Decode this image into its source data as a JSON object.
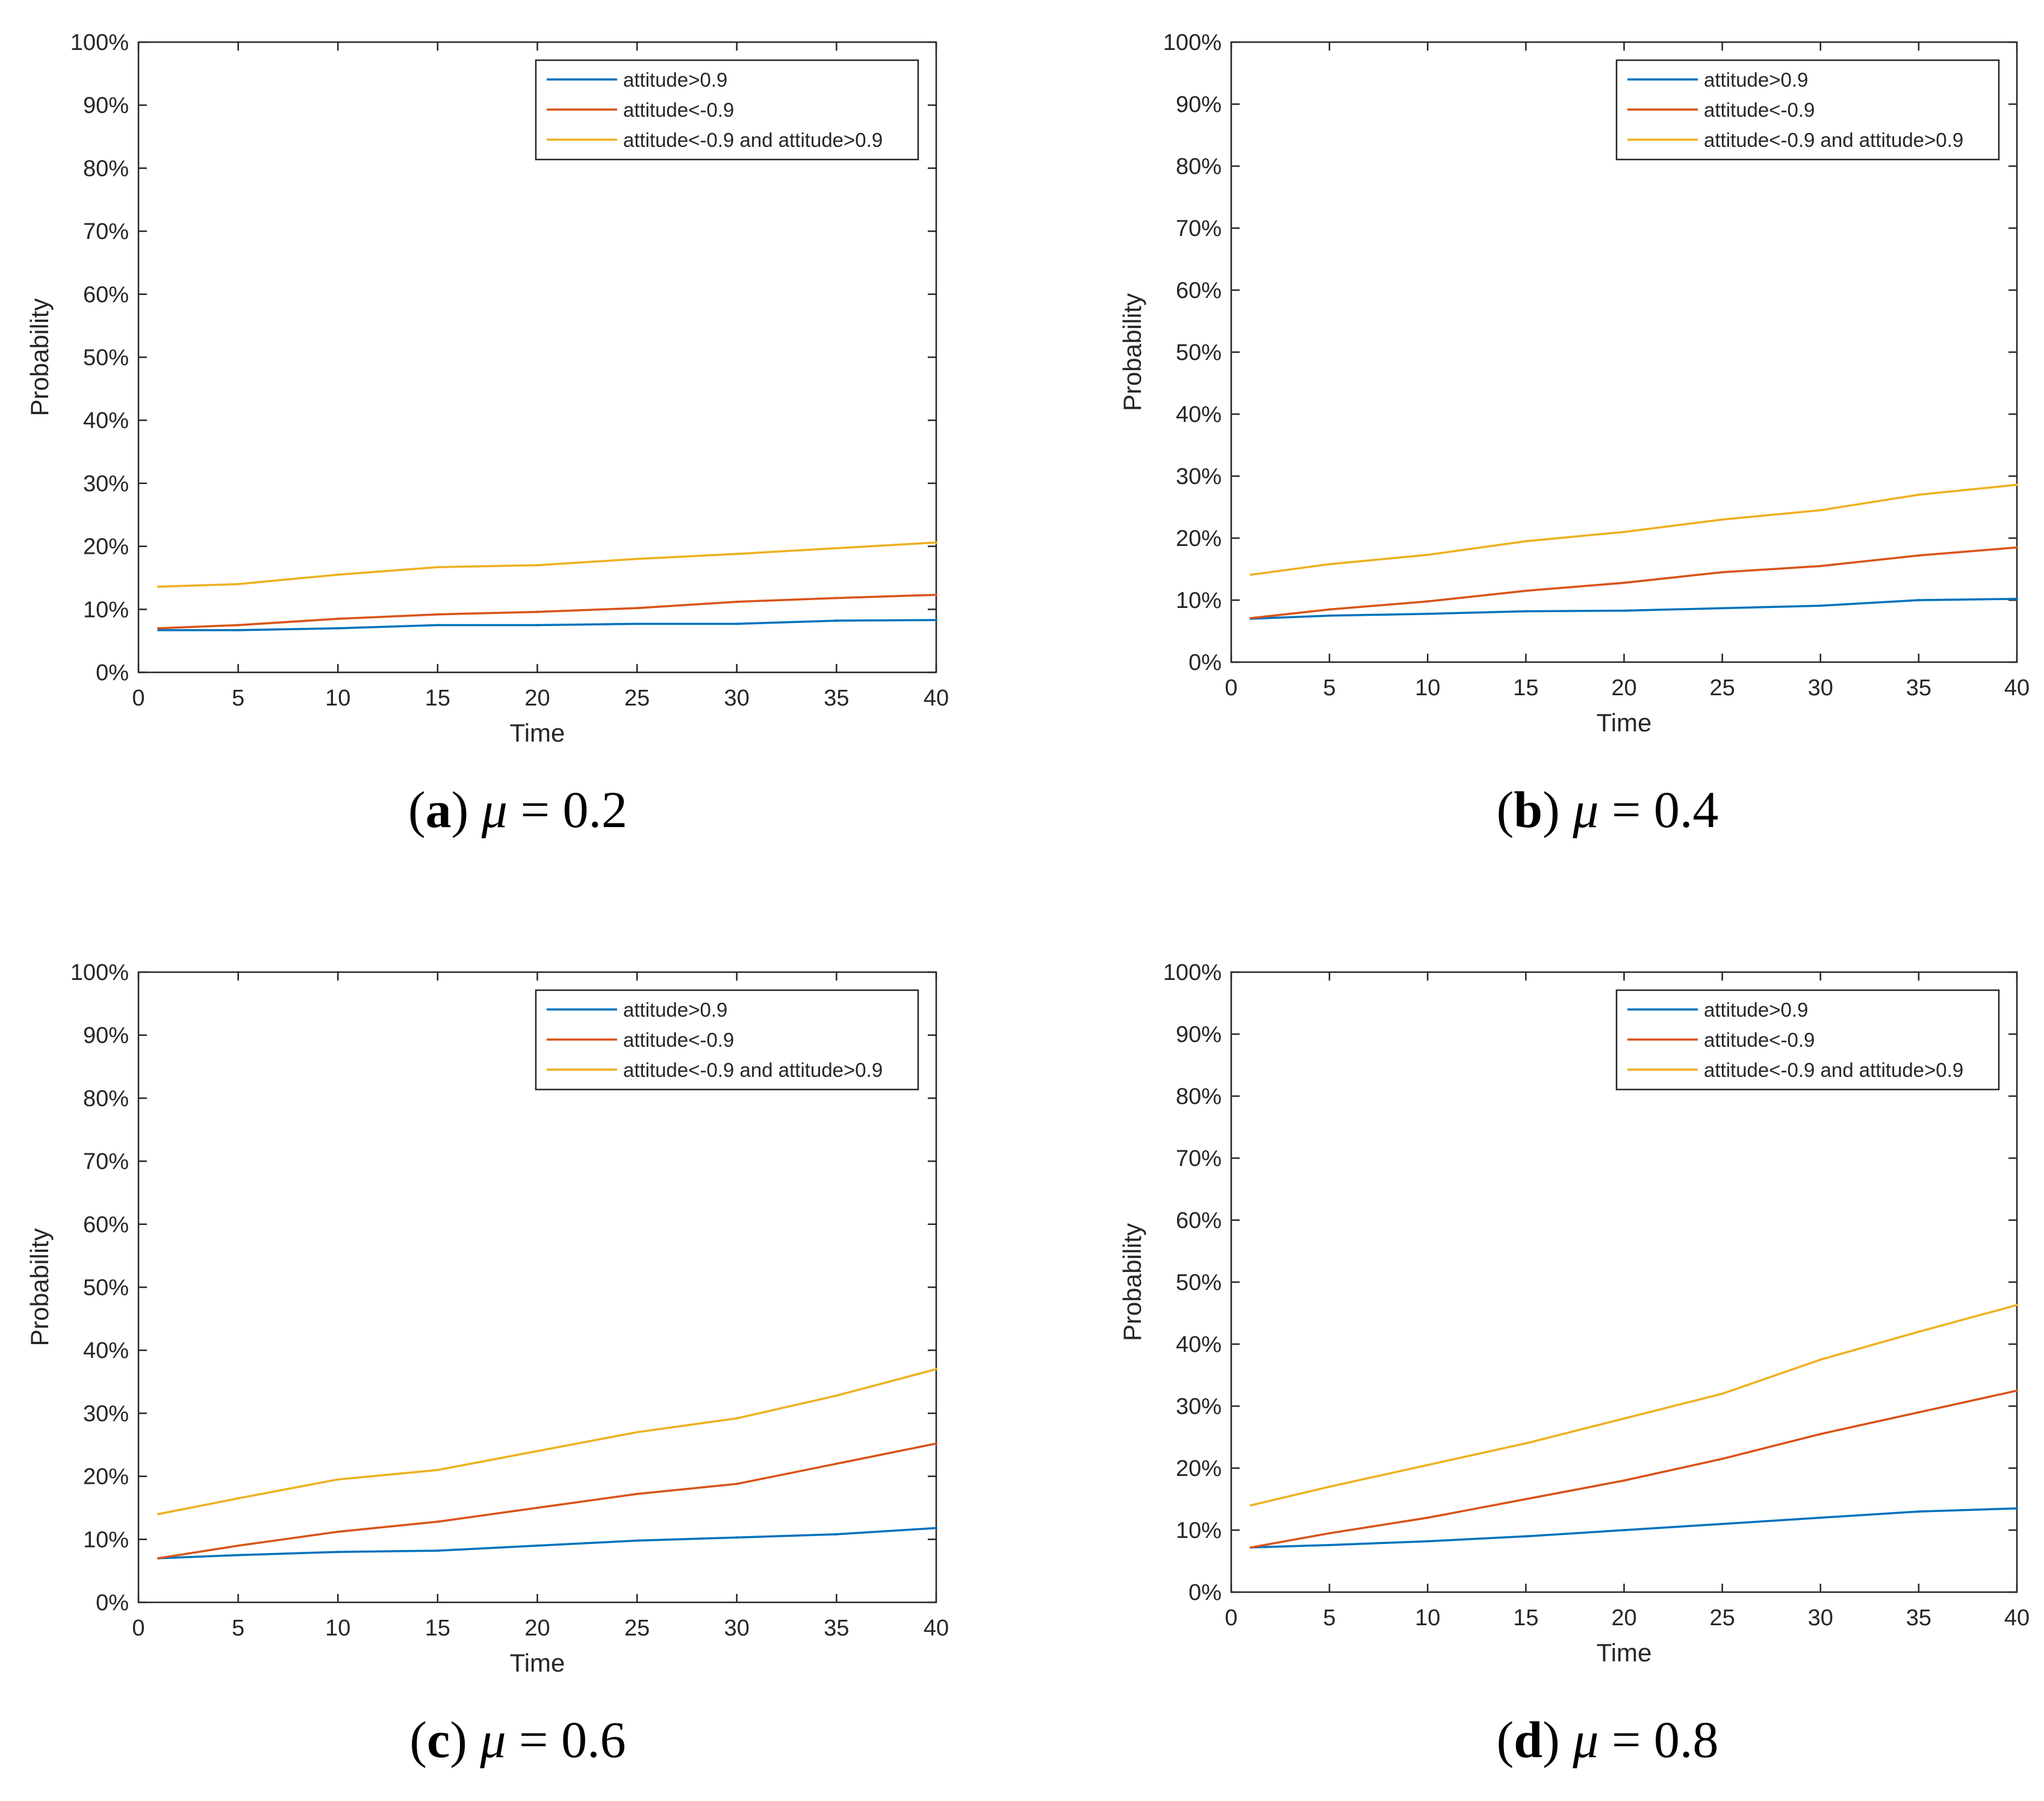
{
  "figure": {
    "panels_count": 4,
    "line_colors": {
      "blue": "#0072BD",
      "orange": "#D95319",
      "yellow": "#EDB120"
    }
  },
  "chart_data": [
    {
      "type": "line",
      "title": "",
      "caption": {
        "letter": "a",
        "symbol": "μ",
        "equals": "=",
        "value": "0.2"
      },
      "xlabel": "Time",
      "ylabel": "Probability",
      "xlim": [
        0,
        40
      ],
      "ylim": [
        0,
        100
      ],
      "xticks": [
        0,
        5,
        10,
        15,
        20,
        25,
        30,
        35,
        40
      ],
      "yticks": [
        0,
        10,
        20,
        30,
        40,
        50,
        60,
        70,
        80,
        90,
        100
      ],
      "ytick_labels": [
        "0%",
        "10%",
        "20%",
        "30%",
        "40%",
        "50%",
        "60%",
        "70%",
        "80%",
        "90%",
        "100%"
      ],
      "legend_position": "top-right",
      "x": [
        1,
        5,
        10,
        15,
        20,
        25,
        30,
        35,
        40
      ],
      "series": [
        {
          "name": "attitude>0.9",
          "color": "#0072BD",
          "values": [
            6.7,
            6.7,
            7.0,
            7.5,
            7.5,
            7.7,
            7.7,
            8.2,
            8.3
          ]
        },
        {
          "name": "attitude<-0.9",
          "color": "#D95319",
          "values": [
            7.0,
            7.5,
            8.5,
            9.2,
            9.6,
            10.2,
            11.2,
            11.8,
            12.3
          ]
        },
        {
          "name": "attitude<-0.9 and attitude>0.9",
          "color": "#EDB120",
          "values": [
            13.6,
            14.0,
            15.5,
            16.7,
            17.0,
            18.0,
            18.8,
            19.7,
            20.6
          ]
        }
      ]
    },
    {
      "type": "line",
      "title": "",
      "caption": {
        "letter": "b",
        "symbol": "μ",
        "equals": "=",
        "value": "0.4"
      },
      "xlabel": "Time",
      "ylabel": "Probability",
      "xlim": [
        0,
        40
      ],
      "ylim": [
        0,
        100
      ],
      "xticks": [
        0,
        5,
        10,
        15,
        20,
        25,
        30,
        35,
        40
      ],
      "yticks": [
        0,
        10,
        20,
        30,
        40,
        50,
        60,
        70,
        80,
        90,
        100
      ],
      "ytick_labels": [
        "0%",
        "10%",
        "20%",
        "30%",
        "40%",
        "50%",
        "60%",
        "70%",
        "80%",
        "90%",
        "100%"
      ],
      "legend_position": "top-right",
      "x": [
        1,
        5,
        10,
        15,
        20,
        25,
        30,
        35,
        40
      ],
      "series": [
        {
          "name": "attitude>0.9",
          "color": "#0072BD",
          "values": [
            7.0,
            7.5,
            7.8,
            8.2,
            8.3,
            8.7,
            9.1,
            10.0,
            10.2
          ]
        },
        {
          "name": "attitude<-0.9",
          "color": "#D95319",
          "values": [
            7.1,
            8.5,
            9.8,
            11.5,
            12.8,
            14.5,
            15.5,
            17.2,
            18.5
          ]
        },
        {
          "name": "attitude<-0.9 and attitude>0.9",
          "color": "#EDB120",
          "values": [
            14.1,
            15.8,
            17.3,
            19.5,
            21.0,
            23.0,
            24.5,
            27.0,
            28.6
          ]
        }
      ]
    },
    {
      "type": "line",
      "title": "",
      "caption": {
        "letter": "c",
        "symbol": "μ",
        "equals": "=",
        "value": "0.6"
      },
      "xlabel": "Time",
      "ylabel": "Probability",
      "xlim": [
        0,
        40
      ],
      "ylim": [
        0,
        100
      ],
      "xticks": [
        0,
        5,
        10,
        15,
        20,
        25,
        30,
        35,
        40
      ],
      "yticks": [
        0,
        10,
        20,
        30,
        40,
        50,
        60,
        70,
        80,
        90,
        100
      ],
      "ytick_labels": [
        "0%",
        "10%",
        "20%",
        "30%",
        "40%",
        "50%",
        "60%",
        "70%",
        "80%",
        "90%",
        "100%"
      ],
      "legend_position": "top-right",
      "x": [
        1,
        5,
        10,
        15,
        20,
        25,
        30,
        35,
        40
      ],
      "series": [
        {
          "name": "attitude>0.9",
          "color": "#0072BD",
          "values": [
            7.0,
            7.5,
            8.0,
            8.2,
            9.0,
            9.8,
            10.3,
            10.8,
            11.8
          ]
        },
        {
          "name": "attitude<-0.9",
          "color": "#D95319",
          "values": [
            7.0,
            9.0,
            11.2,
            12.8,
            15.0,
            17.2,
            18.8,
            22.0,
            25.2
          ]
        },
        {
          "name": "attitude<-0.9 and attitude>0.9",
          "color": "#EDB120",
          "values": [
            14.0,
            16.5,
            19.5,
            21.0,
            24.0,
            27.0,
            29.2,
            32.8,
            37.0
          ]
        }
      ]
    },
    {
      "type": "line",
      "title": "",
      "caption": {
        "letter": "d",
        "symbol": "μ",
        "equals": "=",
        "value": "0.8"
      },
      "xlabel": "Time",
      "ylabel": "Probability",
      "xlim": [
        0,
        40
      ],
      "ylim": [
        0,
        100
      ],
      "xticks": [
        0,
        5,
        10,
        15,
        20,
        25,
        30,
        35,
        40
      ],
      "yticks": [
        0,
        10,
        20,
        30,
        40,
        50,
        60,
        70,
        80,
        90,
        100
      ],
      "ytick_labels": [
        "0%",
        "10%",
        "20%",
        "30%",
        "40%",
        "50%",
        "60%",
        "70%",
        "80%",
        "90%",
        "100%"
      ],
      "legend_position": "top-right",
      "x": [
        1,
        5,
        10,
        15,
        20,
        25,
        30,
        35,
        40
      ],
      "series": [
        {
          "name": "attitude>0.9",
          "color": "#0072BD",
          "values": [
            7.2,
            7.6,
            8.2,
            9.0,
            10.0,
            11.0,
            12.0,
            13.0,
            13.5
          ]
        },
        {
          "name": "attitude<-0.9",
          "color": "#D95319",
          "values": [
            7.2,
            9.5,
            12.0,
            15.0,
            18.0,
            21.5,
            25.5,
            29.0,
            32.5
          ]
        },
        {
          "name": "attitude<-0.9 and attitude>0.9",
          "color": "#EDB120",
          "values": [
            14.0,
            17.0,
            20.5,
            24.0,
            28.0,
            32.0,
            37.5,
            42.0,
            46.3
          ]
        }
      ]
    }
  ]
}
